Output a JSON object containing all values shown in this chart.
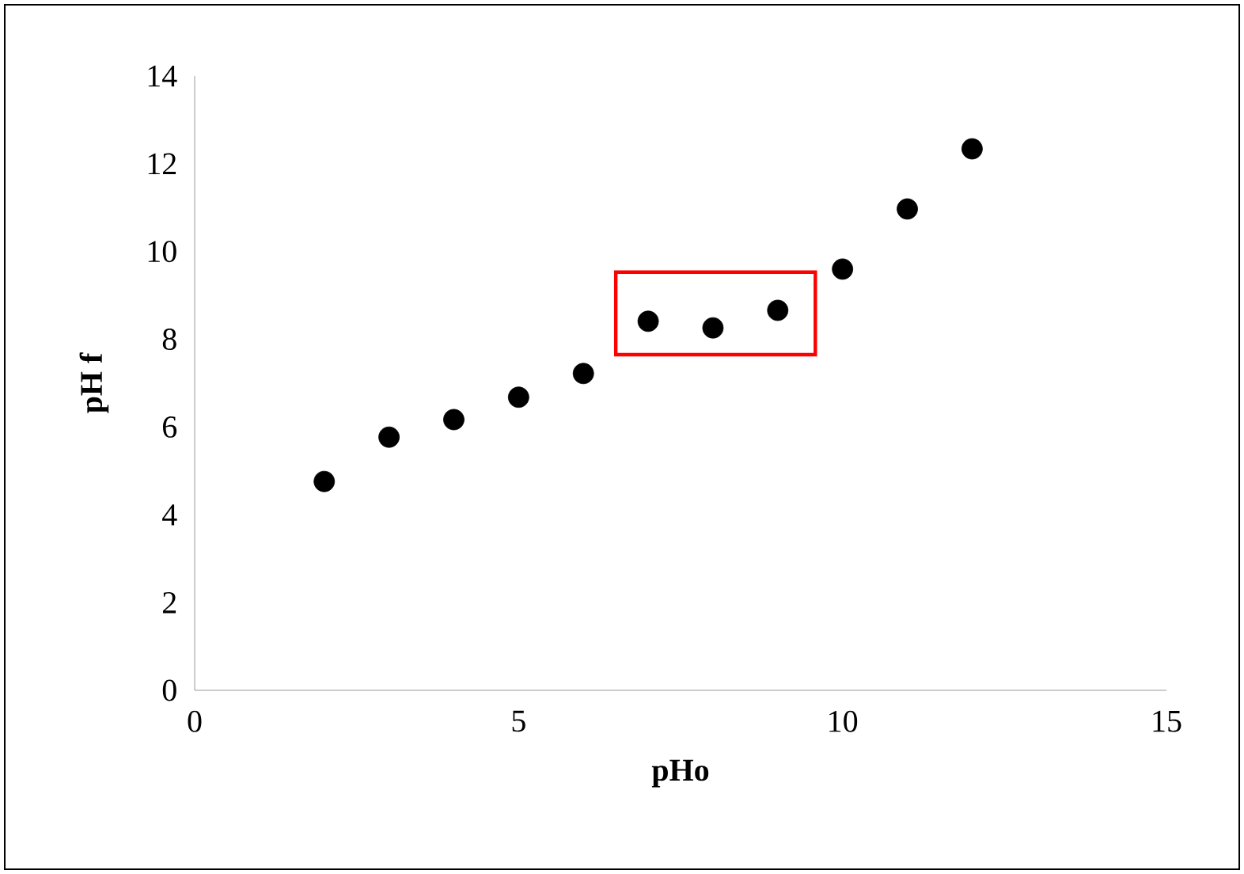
{
  "chart_data": {
    "type": "scatter",
    "xlabel": "pHo",
    "ylabel": "pH f",
    "x": [
      2,
      3,
      4,
      5,
      6,
      7,
      8,
      9,
      10,
      11,
      12
    ],
    "values": [
      4.76,
      5.77,
      6.17,
      6.68,
      7.22,
      8.41,
      8.26,
      8.66,
      9.6,
      10.97,
      12.34
    ],
    "color": "#000000",
    "marker": "circle",
    "xlim": [
      0,
      15
    ],
    "ylim": [
      0,
      14
    ],
    "xticks": [
      0,
      5,
      10,
      15
    ],
    "yticks": [
      0,
      2,
      4,
      6,
      8,
      10,
      12,
      14
    ]
  }
}
